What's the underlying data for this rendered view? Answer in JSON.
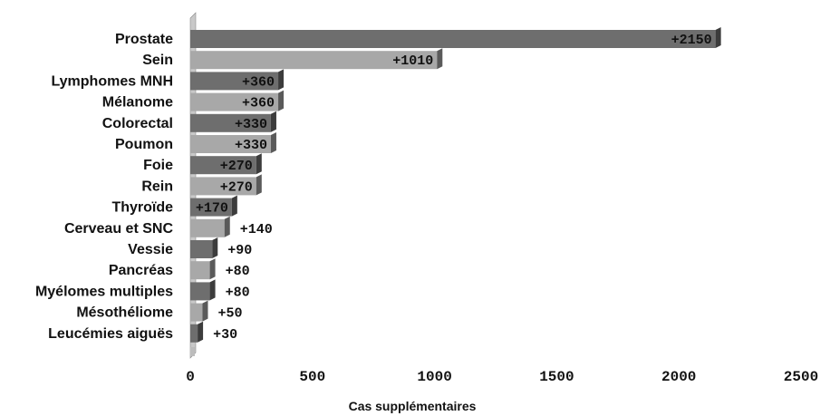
{
  "chart_data": {
    "type": "bar",
    "orientation": "horizontal",
    "categories": [
      "Prostate",
      "Sein",
      "Lymphomes MNH",
      "Mélanome",
      "Colorectal",
      "Poumon",
      "Foie",
      "Rein",
      "Thyroïde",
      "Cerveau et SNC",
      "Vessie",
      "Pancréas",
      "Myélomes multiples",
      "Mésothéliome",
      "Leucémies aiguës"
    ],
    "values": [
      2150,
      1010,
      360,
      360,
      330,
      330,
      270,
      270,
      170,
      140,
      90,
      80,
      80,
      50,
      30
    ],
    "data_labels": [
      "+2150",
      "+1010",
      "+360",
      "+360",
      "+330",
      "+330",
      "+270",
      "+270",
      "+170",
      "+140",
      "+90",
      "+80",
      "+80",
      "+50",
      "+30"
    ],
    "xlabel": "Cas supplémentaires",
    "xlim": [
      0,
      2500
    ],
    "xticks": [
      "0",
      "500",
      "1000",
      "1500",
      "2000",
      "2500"
    ],
    "grid": false,
    "colors": {
      "dark": "#6e6e6e",
      "light": "#a8a8a8",
      "dark_side": "#3c3c3c",
      "light_side": "#5a5a5a"
    }
  }
}
